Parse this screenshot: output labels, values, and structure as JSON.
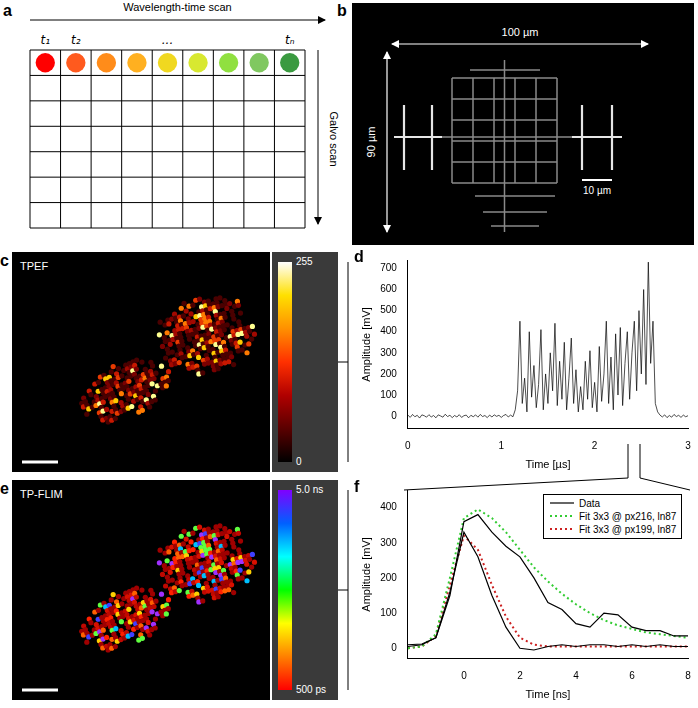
{
  "panels": {
    "a": {
      "label": "a",
      "title": "Wavelength-time scan",
      "side_label": "Galvo scan",
      "columns": 9,
      "rows": 7,
      "column_labels": [
        "t₁",
        "t₂",
        null,
        null,
        "...",
        null,
        null,
        null,
        "tₙ"
      ],
      "colors": [
        "#ff0000",
        "#ff5a1e",
        "#ff8c1a",
        "#ffb020",
        "#f0d820",
        "#d8e830",
        "#90e040",
        "#80c860",
        "#3a9a40"
      ]
    },
    "b": {
      "label": "b",
      "width_label": "100 µm",
      "height_label": "90 µm",
      "scale_label": "10 µm"
    },
    "c": {
      "label": "c",
      "title": "TPEF",
      "colorbar": {
        "range": [
          0,
          255
        ],
        "ticks": [
          0,
          255
        ]
      }
    },
    "e": {
      "label": "e",
      "title": "TP-FLIM",
      "colorbar": {
        "range": [
          0.5,
          5.0
        ],
        "ticks": [
          {
            "value": 5.0,
            "label": "5.0 ns"
          },
          {
            "value": 0.5,
            "label": "500 ps"
          }
        ]
      }
    }
  },
  "chart_data": [
    {
      "type": "line",
      "panel_label": "d",
      "xlabel": "Time [µs]",
      "ylabel": "Amplitude [mV]",
      "x": [
        0,
        0.025,
        0.05,
        0.075,
        0.1,
        0.125,
        0.15,
        0.175,
        0.2,
        0.225,
        0.25,
        0.275,
        0.3,
        0.325,
        0.35,
        0.375,
        0.4,
        0.425,
        0.45,
        0.475,
        0.5,
        0.525,
        0.55,
        0.575,
        0.6,
        0.625,
        0.65,
        0.675,
        0.7,
        0.725,
        0.75,
        0.775,
        0.8,
        0.825,
        0.85,
        0.875,
        0.9,
        0.925,
        0.95,
        0.975,
        1,
        1.025,
        1.05,
        1.075,
        1.1,
        1.125,
        1.15,
        1.175,
        1.2,
        1.225,
        1.25,
        1.275,
        1.3,
        1.325,
        1.35,
        1.375,
        1.4,
        1.425,
        1.45,
        1.475,
        1.5,
        1.525,
        1.55,
        1.575,
        1.6,
        1.625,
        1.65,
        1.675,
        1.7,
        1.725,
        1.75,
        1.775,
        1.8,
        1.825,
        1.85,
        1.875,
        1.9,
        1.925,
        1.95,
        1.975,
        2,
        2.025,
        2.05,
        2.075,
        2.1,
        2.125,
        2.15,
        2.175,
        2.2,
        2.225,
        2.25,
        2.275,
        2.3,
        2.325,
        2.35,
        2.375,
        2.4,
        2.425,
        2.45,
        2.475,
        2.5,
        2.525,
        2.55,
        2.575,
        2.6,
        2.625,
        2.65,
        2.675,
        2.7,
        2.725,
        2.75,
        2.775,
        2.8,
        2.825,
        2.85,
        2.875,
        2.9,
        2.925,
        2.95,
        2.975,
        3
      ],
      "values": [
        5,
        -6,
        8,
        -3,
        4,
        -9,
        6,
        2,
        -5,
        7,
        -4,
        3,
        -8,
        6,
        1,
        -5,
        9,
        -2,
        4,
        -7,
        3,
        -4,
        7,
        -6,
        2,
        5,
        -8,
        4,
        -3,
        6,
        -5,
        8,
        -2,
        3,
        -7,
        5,
        -4,
        6,
        -1,
        4,
        -6,
        3,
        8,
        -4,
        5,
        -3,
        30,
        120,
        450,
        60,
        180,
        20,
        400,
        90,
        240,
        40,
        150,
        410,
        30,
        200,
        60,
        300,
        120,
        440,
        50,
        260,
        80,
        350,
        30,
        180,
        370,
        60,
        220,
        20,
        140,
        30,
        260,
        80,
        310,
        40,
        160,
        20,
        330,
        70,
        200,
        450,
        60,
        280,
        30,
        390,
        100,
        420,
        50,
        250,
        400,
        80,
        300,
        450,
        120,
        500,
        200,
        600,
        150,
        730,
        250,
        450,
        60,
        20,
        5,
        -4,
        6,
        -7,
        3,
        -5,
        8,
        -2,
        4,
        -6,
        5,
        -3,
        2
      ],
      "color": "#000000",
      "xlim": [
        0,
        3
      ],
      "xticks": [
        0,
        1,
        2,
        3
      ],
      "ylim": [
        -60,
        740
      ],
      "yticks": [
        0,
        100,
        200,
        300,
        400,
        500,
        600,
        700
      ],
      "grid": false
    },
    {
      "type": "line",
      "panel_label": "f",
      "xlabel": "Time [ns]",
      "ylabel": "Amplitude [mV]",
      "x": [
        -2,
        -1.5,
        -1,
        -0.5,
        0,
        0.5,
        1,
        1.5,
        2,
        2.5,
        3,
        3.5,
        4,
        4.5,
        5,
        5.5,
        6,
        6.5,
        7,
        7.5,
        8
      ],
      "series": [
        {
          "name": "Data",
          "color": "#000000",
          "line_style": "solid",
          "values": [
            10,
            12,
            30,
            150,
            360,
            380,
            330,
            290,
            260,
            200,
            130,
            110,
            70,
            60,
            100,
            95,
            60,
            50,
            50,
            35,
            35
          ]
        },
        {
          "name": "Data",
          "color": "#000000",
          "line_style": "solid",
          "values": [
            5,
            10,
            30,
            160,
            330,
            260,
            150,
            60,
            0,
            -5,
            5,
            10,
            5,
            10,
            10,
            5,
            10,
            5,
            10,
            5,
            5
          ]
        },
        {
          "name": "Fit 3x3 @ px216, ln87",
          "color": "#33cc33",
          "line_style": "dotted",
          "values": [
            0,
            5,
            40,
            200,
            370,
            395,
            370,
            330,
            280,
            230,
            190,
            155,
            125,
            100,
            80,
            65,
            55,
            45,
            40,
            35,
            30
          ]
        },
        {
          "name": "Fit 3x3 @ px199, ln87",
          "color": "#cc2222",
          "line_style": "dotted",
          "values": [
            0,
            5,
            35,
            180,
            320,
            280,
            180,
            90,
            30,
            10,
            5,
            5,
            5,
            5,
            5,
            5,
            5,
            5,
            5,
            5,
            5
          ]
        }
      ],
      "xlim": [
        -2,
        8
      ],
      "xticks": [
        0,
        2,
        4,
        6,
        8
      ],
      "ylim": [
        -30,
        450
      ],
      "yticks": [
        0,
        100,
        200,
        300,
        400
      ],
      "legend": "upper right",
      "grid": false
    }
  ]
}
